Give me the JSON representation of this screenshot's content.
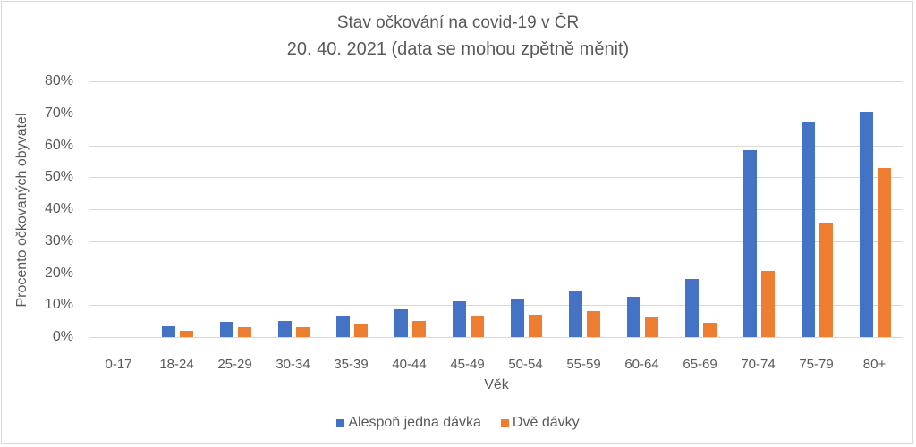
{
  "chart_data": {
    "type": "bar",
    "title": "Stav očkování na covid-19 v ČR",
    "subtitle": "20. 40. 2021 (data se mohou zpětně měnit)",
    "xlabel": "Věk",
    "ylabel": "Procento očkovaných obyvatel",
    "ylim": [
      0,
      80
    ],
    "yticks": [
      "0%",
      "10%",
      "20%",
      "30%",
      "40%",
      "50%",
      "60%",
      "70%",
      "80%"
    ],
    "grid": true,
    "legend_position": "bottom",
    "categories": [
      "0-17",
      "18-24",
      "25-29",
      "30-34",
      "35-39",
      "40-44",
      "45-49",
      "50-54",
      "55-59",
      "60-64",
      "65-69",
      "70-74",
      "75-79",
      "80+"
    ],
    "series": [
      {
        "name": "Alespoň jedna dávka",
        "color": "#4472c4",
        "values": [
          0.0,
          3.4,
          4.8,
          5.0,
          6.7,
          8.7,
          11.2,
          12.1,
          14.3,
          12.6,
          18.2,
          58.6,
          67.1,
          70.5
        ]
      },
      {
        "name": "Dvě dávky",
        "color": "#ed7d31",
        "values": [
          0.0,
          2.0,
          3.1,
          3.1,
          4.2,
          5.1,
          6.5,
          7.0,
          8.1,
          6.2,
          4.5,
          20.8,
          35.8,
          52.8
        ]
      }
    ]
  }
}
